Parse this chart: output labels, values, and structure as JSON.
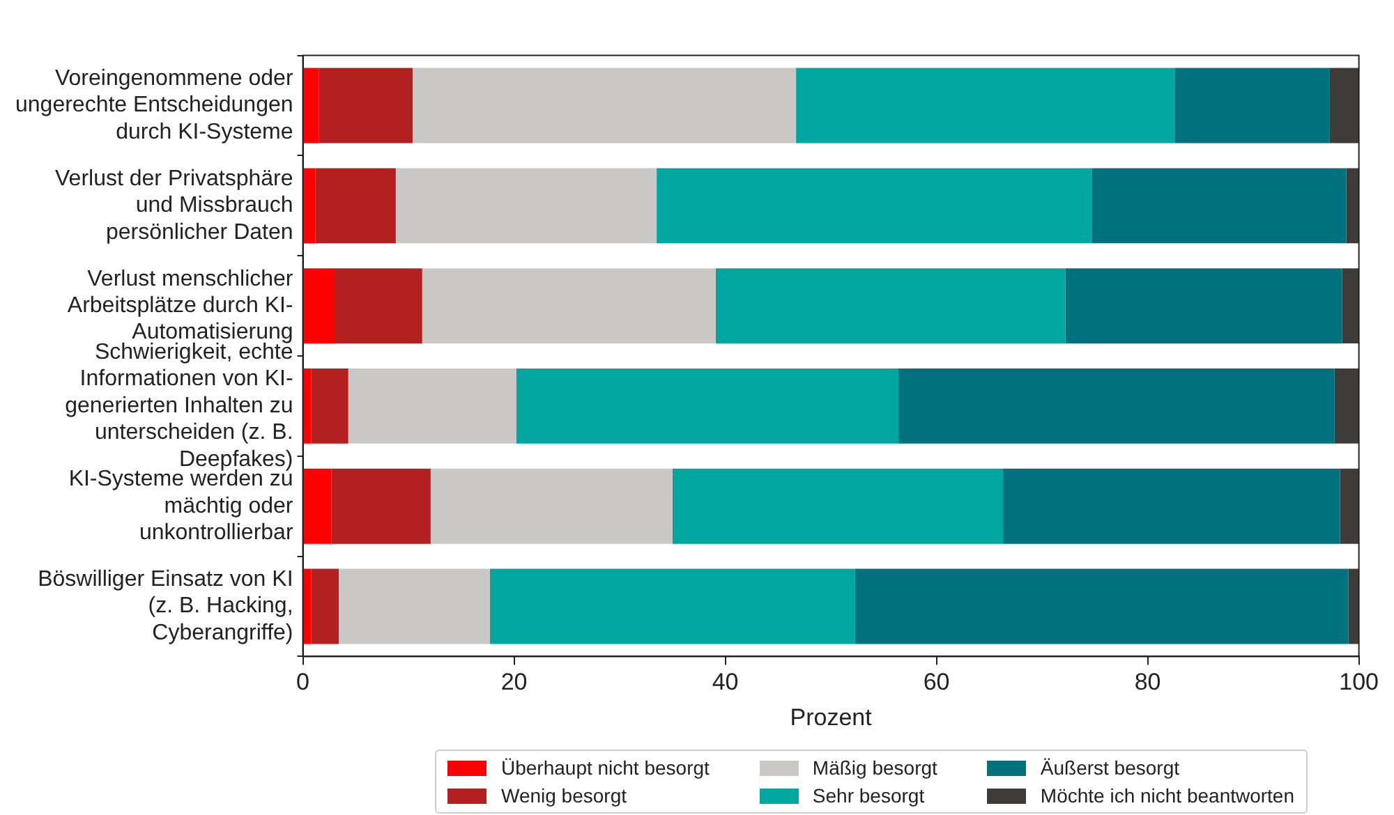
{
  "chart_data": {
    "type": "bar",
    "orientation": "horizontal",
    "stacked": true,
    "xlabel": "Prozent",
    "categories": [
      "Voreingenommene oder ungerechte Entscheidungen durch KI-Systeme",
      "Verlust der Privatsphäre und Missbrauch persönlicher Daten",
      "Verlust menschlicher Arbeitsplätze durch KI-Automatisierung",
      "Schwierigkeit, echte Informationen von KI-generierten Inhalten zu unterscheiden (z. B. Deepfakes)",
      "KI-Systeme werden zu mächtig oder unkontrollierbar",
      "Böswilliger Einsatz von KI (z. B. Hacking, Cyberangriffe)"
    ],
    "series": [
      {
        "name": "Überhaupt nicht besorgt",
        "color": "#ff0000",
        "values": [
          1.5,
          1.2,
          3.0,
          0.8,
          2.7,
          0.8
        ]
      },
      {
        "name": "Wenig besorgt",
        "color": "#b22020",
        "values": [
          8.9,
          7.6,
          8.3,
          3.5,
          9.4,
          2.6
        ]
      },
      {
        "name": "Mäßig besorgt",
        "color": "#c9c8c6",
        "values": [
          36.3,
          24.7,
          27.8,
          15.9,
          22.9,
          14.3
        ]
      },
      {
        "name": "Sehr besorgt",
        "color": "#00a79f",
        "values": [
          35.9,
          41.2,
          33.1,
          36.2,
          31.3,
          34.6
        ]
      },
      {
        "name": "Äußerst besorgt",
        "color": "#01717e",
        "values": [
          14.6,
          24.1,
          26.2,
          41.3,
          31.9,
          46.7
        ]
      },
      {
        "name": "Möchte ich nicht beantworten",
        "color": "#3f3b39",
        "values": [
          2.8,
          1.2,
          1.6,
          2.3,
          1.8,
          1.0
        ]
      }
    ],
    "xlim": [
      0,
      100
    ],
    "xticks": [
      0,
      20,
      40,
      60,
      80,
      100
    ],
    "grid": false,
    "legend": "bottom"
  }
}
